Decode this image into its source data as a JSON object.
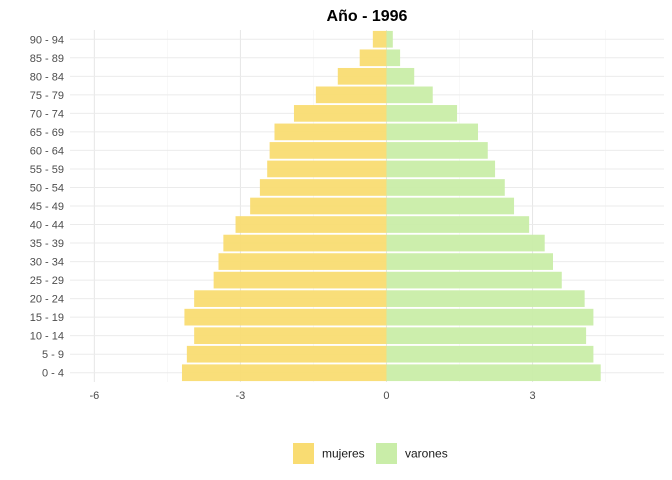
{
  "chart_data": {
    "type": "bar",
    "orientation": "horizontal",
    "title": "Año - 1996",
    "xlabel": "",
    "ylabel": "",
    "xlim": [
      -6.5,
      5.7
    ],
    "xticks": [
      -6,
      -3,
      0,
      3
    ],
    "xtick_labels": [
      "-6",
      "-3",
      "0",
      "3"
    ],
    "grid": true,
    "legend_position": "bottom",
    "categories": [
      "0 - 4",
      "5 - 9",
      "10 - 14",
      "15 - 19",
      "20 - 24",
      "25 - 29",
      "30 - 34",
      "35 - 39",
      "40 - 44",
      "45 - 49",
      "50 - 54",
      "55 - 59",
      "60 - 64",
      "65 - 69",
      "70 - 74",
      "75 - 79",
      "80 - 84",
      "85 - 89",
      "90 - 94"
    ],
    "series": [
      {
        "name": "mujeres",
        "color": "#f9dc72",
        "values": [
          -4.2,
          -4.1,
          -3.95,
          -4.15,
          -3.95,
          -3.55,
          -3.45,
          -3.35,
          -3.1,
          -2.8,
          -2.6,
          -2.45,
          -2.4,
          -2.3,
          -1.9,
          -1.45,
          -1.0,
          -0.55,
          -0.28
        ]
      },
      {
        "name": "varones",
        "color": "#c9eda8",
        "values": [
          4.4,
          4.25,
          4.1,
          4.25,
          4.07,
          3.6,
          3.42,
          3.25,
          2.93,
          2.62,
          2.43,
          2.23,
          2.08,
          1.88,
          1.45,
          0.95,
          0.57,
          0.28,
          0.13
        ]
      }
    ]
  }
}
